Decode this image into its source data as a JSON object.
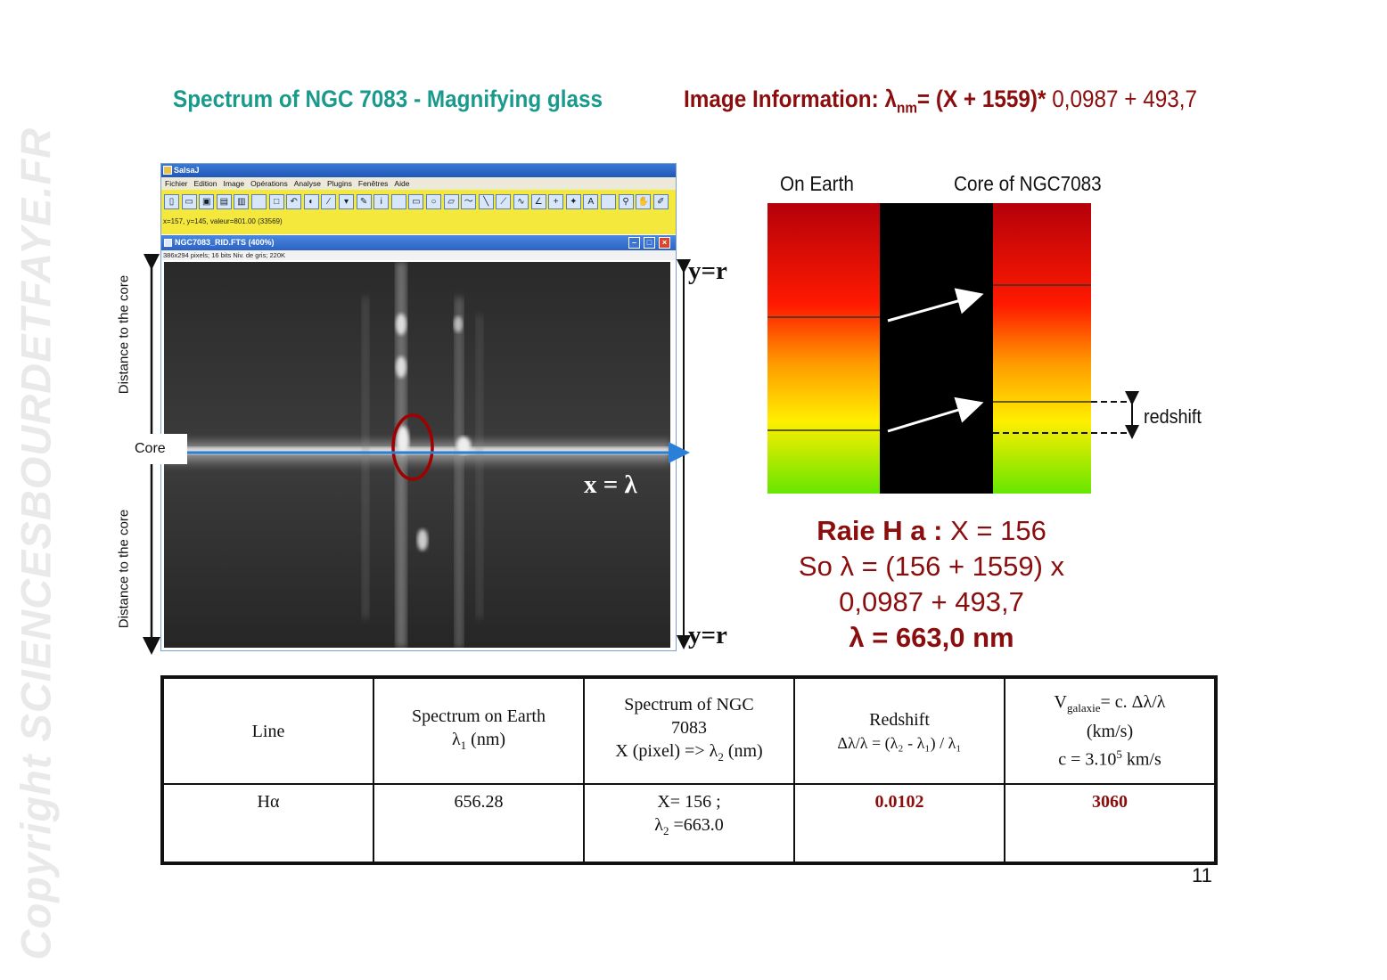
{
  "watermark": "Copyright SCIENCESBOURDETFAYE.FR",
  "title_left": "Spectrum of NGC 7083 - Magnifying glass",
  "title_right": {
    "prefix": "Image Information: λ",
    "sub": "nm",
    "bold_part": "= (X + 1559)*",
    "rest": " 0,0987 + 493,7"
  },
  "app": {
    "window_title": "SalsaJ",
    "menu": [
      "Fichier",
      "Edition",
      "Image",
      "Opérations",
      "Analyse",
      "Plugins",
      "Fenêtres",
      "Aide"
    ],
    "tools": [
      "new-doc-icon",
      "open-icon",
      "save-icon",
      "print-icon",
      "edit-icon",
      "blank-icon",
      "rect-icon",
      "undo-icon",
      "contrast-icon",
      "wand-icon",
      "brush-icon",
      "eyedropper-icon",
      "info-icon",
      "blank-icon",
      "rectangle-tool-icon",
      "oval-tool-icon",
      "polygon-tool-icon",
      "freehand-tool-icon",
      "line-tool-icon",
      "segmented-line-icon",
      "freeline-icon",
      "angle-icon",
      "point-icon",
      "wand-tool-icon",
      "text-tool-icon",
      "blank-icon",
      "magnifier-icon",
      "hand-icon",
      "pencil-icon"
    ],
    "tool_glyphs": [
      "▯",
      "▭",
      "▣",
      "▤",
      "▥",
      "",
      "□",
      "↶",
      "◐",
      "⁄",
      "▾",
      "✎",
      "i",
      "",
      "▭",
      "○",
      "▱",
      "〜",
      "╲",
      "⟋",
      "∿",
      "∠",
      "+",
      "✦",
      "A",
      "",
      "⚲",
      "✋",
      "✐"
    ],
    "status_text": "x=157, y=145, valeur=801.00 (33569)",
    "image_window_title": "NGC7083_RID.FTS (400%)",
    "image_info": "386x294 pixels; 16 bits Niv. de gris; 220K"
  },
  "annotations": {
    "distance_top": "Distance to the core",
    "distance_bottom": "Distance to the core",
    "core": "Core",
    "y_top": "y=r",
    "y_bottom": "y=r",
    "x_lambda": "x = λ"
  },
  "diagram": {
    "label_earth": "On Earth",
    "label_core": "Core of NGC7083",
    "label_redshift": "redshift"
  },
  "calculation": {
    "line1_bold": "Raie H a :",
    "line1_rest": " X = 156",
    "line2": "So λ = (156 + 1559) x",
    "line3": "0,0987 + 493,7",
    "line4": "λ = 663,0 nm"
  },
  "table": {
    "headers": {
      "line": "Line",
      "earth_top": "Spectrum on Earth",
      "earth_bottom_pre": "λ",
      "earth_bottom_sub": "1",
      "earth_bottom_post": " (nm)",
      "ngc_line1": "Spectrum of NGC",
      "ngc_line2": "7083",
      "ngc_line3_pre": "X (pixel) => λ",
      "ngc_line3_sub": "2",
      "ngc_line3_post": " (nm)",
      "redshift_top": "Redshift",
      "redshift_formula": "Δλ/λ = (λ₂ - λ₁) / λ₁",
      "v_pre": "V",
      "v_sub": "galaxie",
      "v_post": "= c. Δλ/λ",
      "v_unit": "(km/s)",
      "v_c_pre": "c = 3.10",
      "v_c_sup": "5",
      "v_c_post": " km/s"
    },
    "row": {
      "line": "Hα",
      "earth": "656.28",
      "x_val": "X= 156 ;",
      "lambda2_pre": "λ",
      "lambda2_sub": "2",
      "lambda2_post": " =663.0",
      "redshift": "0.0102",
      "velocity": "3060"
    }
  },
  "page_number": "11"
}
